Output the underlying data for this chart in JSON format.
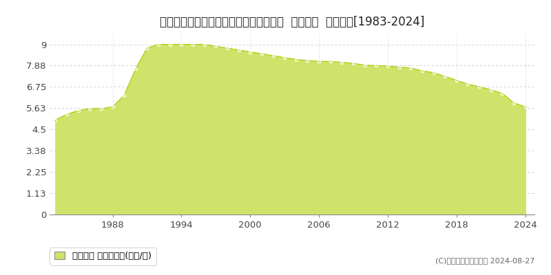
{
  "title": "栃木県足利市菅田町字東根８６９番１外  地価公示  地価推移[1983-2024]",
  "years": [
    1983,
    1984,
    1985,
    1986,
    1987,
    1988,
    1989,
    1990,
    1991,
    1992,
    1993,
    1994,
    1995,
    1996,
    1997,
    1998,
    1999,
    2000,
    2001,
    2002,
    2003,
    2004,
    2005,
    2006,
    2007,
    2008,
    2009,
    2010,
    2011,
    2012,
    2013,
    2014,
    2015,
    2016,
    2017,
    2018,
    2019,
    2020,
    2021,
    2022,
    2023,
    2024
  ],
  "values": [
    5.0,
    5.3,
    5.5,
    5.6,
    5.6,
    5.7,
    6.3,
    7.7,
    8.8,
    9.0,
    9.0,
    9.0,
    9.0,
    9.0,
    8.9,
    8.8,
    8.7,
    8.6,
    8.5,
    8.4,
    8.3,
    8.2,
    8.15,
    8.1,
    8.1,
    8.05,
    8.0,
    7.9,
    7.88,
    7.85,
    7.8,
    7.75,
    7.6,
    7.5,
    7.3,
    7.1,
    6.9,
    6.75,
    6.6,
    6.4,
    5.9,
    5.7
  ],
  "fill_color": "#cfe36a",
  "line_color": "#aac800",
  "marker_face_color": "#cfe36a",
  "marker_edge_color": "#ffffff",
  "bg_color": "#ffffff",
  "yticks": [
    0,
    1.13,
    2.25,
    3.38,
    4.5,
    5.63,
    6.75,
    7.88,
    9
  ],
  "ylim": [
    0,
    9.6
  ],
  "xticks": [
    1988,
    1994,
    2000,
    2006,
    2012,
    2018,
    2024
  ],
  "xlim": [
    1982.5,
    2024.8
  ],
  "grid_color": "#cccccc",
  "legend_label": "地価公示 平均坪単価(万円/坪)",
  "copyright_text": "(C)土地価格ドットコム 2024-08-27",
  "title_fontsize": 12,
  "tick_fontsize": 9.5,
  "legend_fontsize": 9.5
}
